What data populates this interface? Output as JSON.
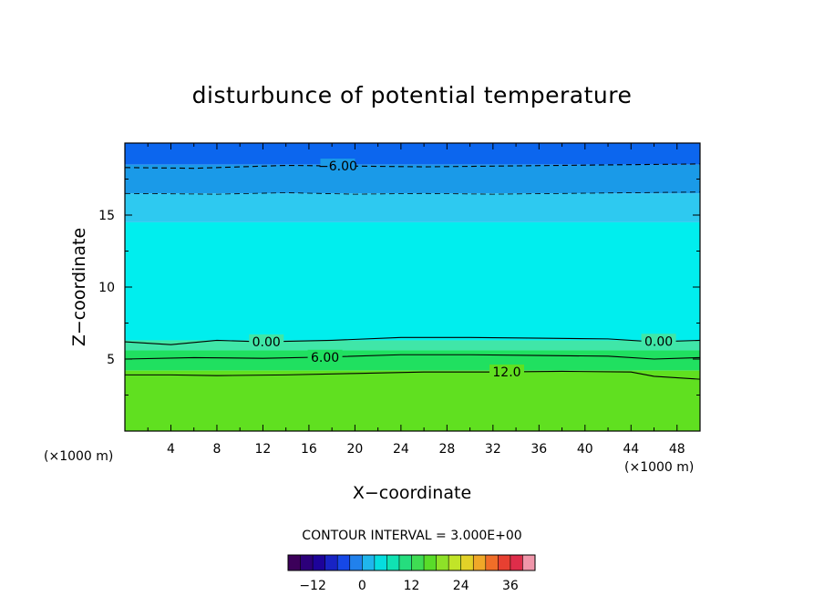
{
  "chart_data": {
    "type": "contour",
    "title": "disturbunce of potential temperature",
    "xlabel": "X−coordinate",
    "ylabel": "Z−coordinate",
    "x_unit_left": "(×1000 m)",
    "x_unit_right": "(×1000 m)",
    "xlim": [
      0,
      50
    ],
    "ylim": [
      0,
      20
    ],
    "x_ticks": [
      4,
      8,
      12,
      16,
      20,
      24,
      28,
      32,
      36,
      40,
      44,
      48
    ],
    "x_tick_labels": [
      "4",
      "8",
      "12",
      "16",
      "20",
      "24",
      "28",
      "32",
      "36",
      "40",
      "44",
      "48"
    ],
    "y_ticks": [
      5,
      10,
      15
    ],
    "y_tick_labels": [
      "5",
      "10",
      "15"
    ],
    "contour_interval_text": "CONTOUR INTERVAL = 3.000E+00",
    "colorbar": {
      "min": -18,
      "max": 42,
      "step": 3,
      "tick_values": [
        -12,
        0,
        12,
        24,
        36
      ],
      "tick_labels": [
        "−12",
        "0",
        "12",
        "24",
        "36"
      ]
    },
    "contour_lines": [
      {
        "level": -6,
        "label": "−6.00",
        "style": "dashed",
        "labeled": true,
        "points": [
          [
            0,
            18.3
          ],
          [
            6,
            18.25
          ],
          [
            10,
            18.35
          ],
          [
            14,
            18.45
          ],
          [
            20,
            18.4
          ],
          [
            26,
            18.35
          ],
          [
            32,
            18.4
          ],
          [
            38,
            18.45
          ],
          [
            44,
            18.5
          ],
          [
            50,
            18.55
          ]
        ]
      },
      {
        "level": -3,
        "label": "",
        "style": "dashed",
        "labeled": false,
        "points": [
          [
            0,
            16.5
          ],
          [
            8,
            16.45
          ],
          [
            14,
            16.55
          ],
          [
            20,
            16.45
          ],
          [
            26,
            16.5
          ],
          [
            32,
            16.45
          ],
          [
            38,
            16.5
          ],
          [
            44,
            16.55
          ],
          [
            50,
            16.6
          ]
        ]
      },
      {
        "level": 0,
        "label": "0.00",
        "style": "solid",
        "labeled": true,
        "points": [
          [
            0,
            6.2
          ],
          [
            4,
            6.0
          ],
          [
            8,
            6.3
          ],
          [
            12,
            6.2
          ],
          [
            18,
            6.3
          ],
          [
            24,
            6.5
          ],
          [
            30,
            6.5
          ],
          [
            36,
            6.45
          ],
          [
            42,
            6.4
          ],
          [
            46,
            6.2
          ],
          [
            50,
            6.3
          ]
        ]
      },
      {
        "level": 6,
        "label": "6.00",
        "style": "solid",
        "labeled": true,
        "points": [
          [
            0,
            5.0
          ],
          [
            6,
            5.1
          ],
          [
            12,
            5.05
          ],
          [
            18,
            5.15
          ],
          [
            24,
            5.3
          ],
          [
            30,
            5.3
          ],
          [
            36,
            5.25
          ],
          [
            42,
            5.2
          ],
          [
            46,
            5.0
          ],
          [
            50,
            5.1
          ]
        ]
      },
      {
        "level": 12,
        "label": "12.0",
        "style": "solid",
        "labeled": true,
        "points": [
          [
            0,
            3.9
          ],
          [
            4,
            3.9
          ],
          [
            8,
            3.85
          ],
          [
            14,
            3.9
          ],
          [
            20,
            4.0
          ],
          [
            26,
            4.1
          ],
          [
            32,
            4.1
          ],
          [
            38,
            4.15
          ],
          [
            44,
            4.1
          ],
          [
            46,
            3.8
          ],
          [
            50,
            3.6
          ]
        ]
      }
    ],
    "fill_bands": [
      {
        "from_z": 18.5,
        "to_z": 20,
        "value": -9,
        "color": "#0c66ee"
      },
      {
        "from_z": 16.5,
        "to_z": 18.5,
        "value": -6,
        "color": "#1a9ae8"
      },
      {
        "from_z": 14.5,
        "to_z": 16.5,
        "value": -3,
        "color": "#2ec9f0"
      },
      {
        "from_z": 6.3,
        "to_z": 14.5,
        "value": 0,
        "color": "#00eeee"
      },
      {
        "from_z": 5.6,
        "to_z": 6.3,
        "value": 3,
        "color": "#40e6a8"
      },
      {
        "from_z": 4.2,
        "to_z": 5.6,
        "value": 6,
        "color": "#20e060"
      },
      {
        "from_z": 0,
        "to_z": 4.2,
        "value": 12,
        "color": "#60e020"
      }
    ]
  }
}
